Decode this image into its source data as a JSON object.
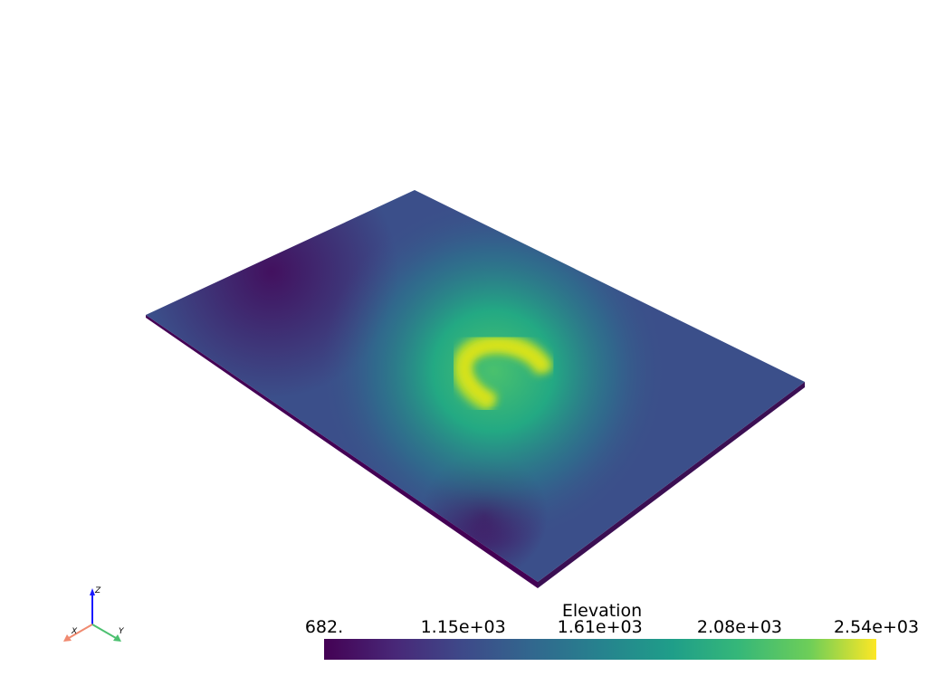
{
  "scalar_bar": {
    "title": "Elevation",
    "range": [
      682,
      2540
    ],
    "ticks": [
      {
        "value": 682,
        "label": "682."
      },
      {
        "value": 1150,
        "label": "1.15e+03"
      },
      {
        "value": 1610,
        "label": "1.61e+03"
      },
      {
        "value": 2080,
        "label": "2.08e+03"
      },
      {
        "value": 2540,
        "label": "2.54e+03"
      }
    ]
  },
  "axes_widget": {
    "x_label": "X",
    "y_label": "Y",
    "z_label": "Z"
  }
}
